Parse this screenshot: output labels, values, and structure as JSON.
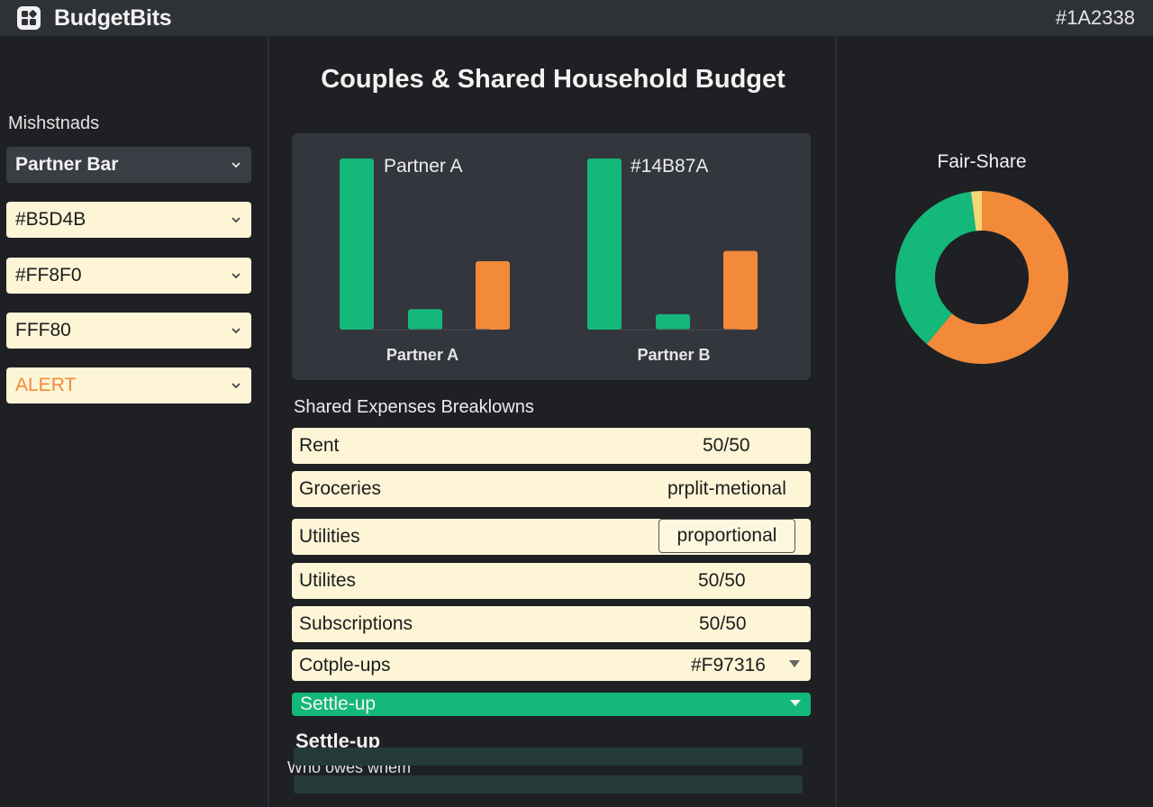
{
  "app": {
    "name": "BudgetBits",
    "top_right_label": "#1A2338"
  },
  "sidebar": {
    "title": "Mishstnads",
    "dropdowns": [
      {
        "label": "Partner Bar"
      },
      {
        "label": "#B5D4B"
      },
      {
        "label": "#FF8F0"
      },
      {
        "label": "FFF80"
      },
      {
        "label": "ALERT"
      }
    ]
  },
  "main": {
    "title": "Couples & Shared Household Budget",
    "chart_data": {
      "type": "bar",
      "groups": [
        {
          "name": "Partner A",
          "header": "Partner A",
          "values": [
            100,
            12,
            40
          ]
        },
        {
          "name": "Partner B",
          "header": "#14B87A",
          "values": [
            100,
            9,
            46
          ]
        }
      ],
      "series_colors": [
        "#14b87a",
        "#14b87a",
        "#f28a3a"
      ]
    },
    "expenses": {
      "label": "Shared Expenses Breaklowns",
      "rows": [
        {
          "name": "Rent",
          "value": "50/50"
        },
        {
          "name": "Groceries",
          "value": "prplit-metional"
        },
        {
          "name": "Utilities",
          "value": "proportional"
        },
        {
          "name": "Utilites",
          "value": "50/50"
        },
        {
          "name": "Subscriptions",
          "value": "50/50"
        },
        {
          "name": "Cotple-ups",
          "value": "#F97316"
        }
      ]
    },
    "settle": {
      "bar_label": "Settle-up",
      "heading": "Settle-up",
      "owes_label": "Who owes whem"
    }
  },
  "fair_share": {
    "title": "Fair-Share",
    "chart_data": {
      "type": "pie",
      "slices": [
        {
          "value": 61,
          "color": "#f28a3a"
        },
        {
          "value": 37,
          "color": "#14b87a"
        },
        {
          "value": 2,
          "color": "#f6d776"
        }
      ]
    }
  },
  "colors": {
    "green": "#14b87a",
    "orange": "#f28a3a",
    "cream": "#fdf5d6",
    "background": "#1e2024"
  }
}
